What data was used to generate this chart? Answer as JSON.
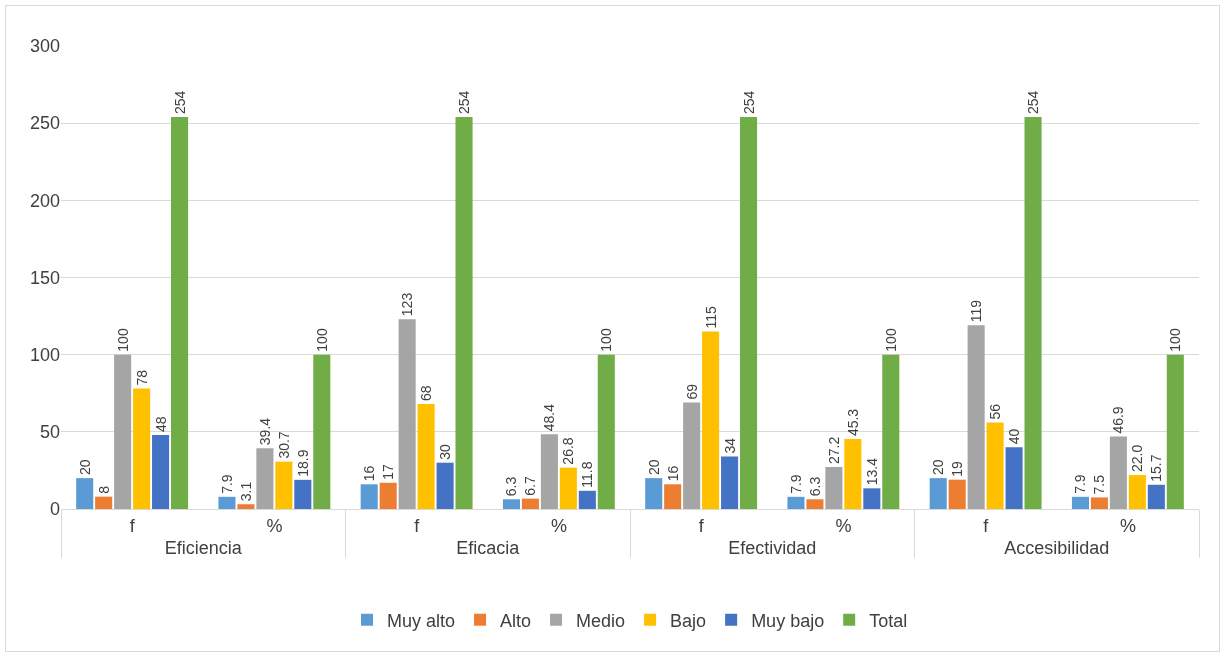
{
  "chart_data": {
    "type": "bar",
    "categories": [
      "f",
      "%",
      "f",
      "%",
      "f",
      "%",
      "f",
      "%"
    ],
    "annotations": [
      "Eficiencia",
      "Eficacia",
      "Efectividad",
      "Accesibilidad"
    ],
    "series": [
      {
        "name": "Muy alto",
        "color": "#5b9bd5",
        "values": [
          20,
          7.9,
          16,
          6.3,
          20,
          7.9,
          20,
          7.9
        ],
        "value_labels": [
          "20",
          "7.9",
          "16",
          "6.3",
          "20",
          "7.9",
          "20",
          "7.9"
        ]
      },
      {
        "name": "Alto",
        "color": "#ed7d31",
        "values": [
          8,
          3.1,
          17,
          6.7,
          16,
          6.3,
          19,
          7.5
        ],
        "value_labels": [
          "8",
          "3.1",
          "17",
          "6.7",
          "16",
          "6.3",
          "19",
          "7.5"
        ]
      },
      {
        "name": "Medio",
        "color": "#a5a5a5",
        "values": [
          100,
          39.4,
          123,
          48.4,
          69,
          27.2,
          119,
          46.9
        ],
        "value_labels": [
          "100",
          "39.4",
          "123",
          "48.4",
          "69",
          "27.2",
          "119",
          "46.9"
        ]
      },
      {
        "name": "Bajo",
        "color": "#ffc000",
        "values": [
          78,
          30.7,
          68,
          26.8,
          115,
          45.3,
          56,
          22.0
        ],
        "value_labels": [
          "78",
          "30.7",
          "68",
          "26.8",
          "115",
          "45.3",
          "56",
          "22.0"
        ]
      },
      {
        "name": "Muy bajo",
        "color": "#4472c4",
        "values": [
          48,
          18.9,
          30,
          11.8,
          34,
          13.4,
          40,
          15.7
        ],
        "value_labels": [
          "48",
          "18.9",
          "30",
          "11.8",
          "34",
          "13.4",
          "40",
          "15.7"
        ]
      },
      {
        "name": "Total",
        "color": "#70ad47",
        "values": [
          254,
          100,
          254,
          100,
          254,
          100,
          254,
          100
        ],
        "value_labels": [
          "254",
          "100",
          "254",
          "100",
          "254",
          "100",
          "254",
          "100"
        ]
      }
    ],
    "ylim": [
      0,
      300
    ],
    "yticks": [
      0,
      50,
      100,
      150,
      200,
      250,
      300
    ],
    "grid": "y",
    "legend": "bottom"
  }
}
